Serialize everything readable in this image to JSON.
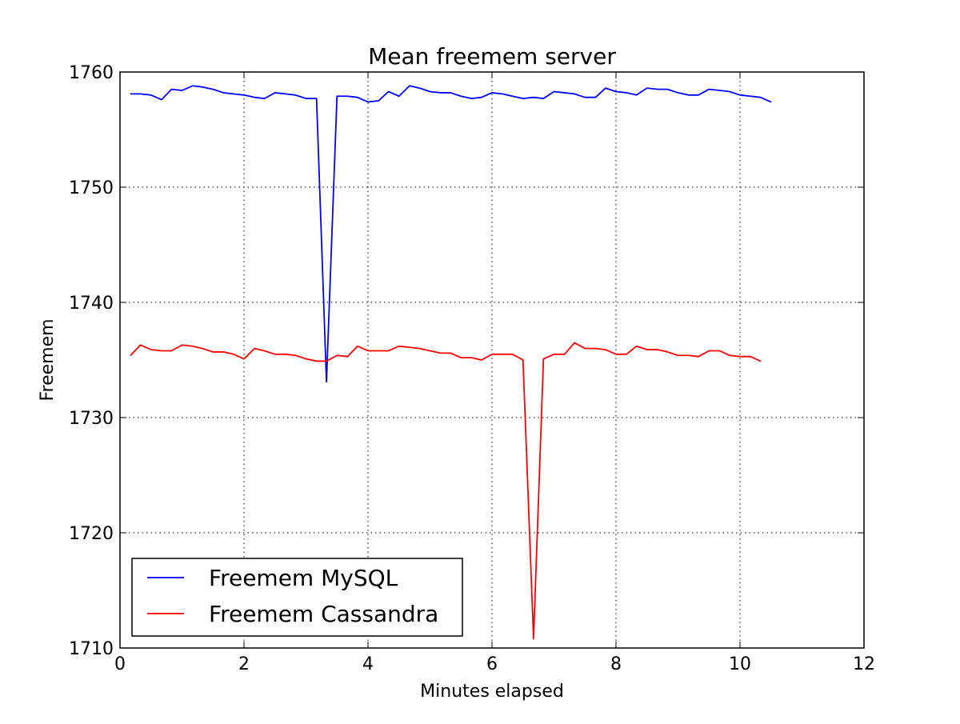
{
  "chart_data": {
    "type": "line",
    "title": "Mean freemem server",
    "xlabel": "Minutes elapsed",
    "ylabel": "Freemem",
    "xlim": [
      0,
      12
    ],
    "ylim": [
      1710,
      1760
    ],
    "xticks": [
      0,
      2,
      4,
      6,
      8,
      10,
      12
    ],
    "yticks": [
      1710,
      1720,
      1730,
      1740,
      1750,
      1760
    ],
    "grid": true,
    "legend_position": "lower-left",
    "series": [
      {
        "name": "Freemem MySQL",
        "color": "#0000ff",
        "x": [
          0.17,
          0.33,
          0.5,
          0.67,
          0.83,
          1.0,
          1.17,
          1.33,
          1.5,
          1.67,
          1.83,
          2.0,
          2.17,
          2.33,
          2.5,
          2.67,
          2.83,
          3.0,
          3.17,
          3.33,
          3.5,
          3.67,
          3.83,
          4.0,
          4.17,
          4.33,
          4.5,
          4.67,
          4.83,
          5.0,
          5.17,
          5.33,
          5.5,
          5.67,
          5.83,
          6.0,
          6.17,
          6.33,
          6.5,
          6.67,
          6.83,
          7.0,
          7.17,
          7.33,
          7.5,
          7.67,
          7.83,
          8.0,
          8.17,
          8.33,
          8.5,
          8.67,
          8.83,
          9.0,
          9.17,
          9.33,
          9.5,
          9.67,
          9.83,
          10.0,
          10.17,
          10.33,
          10.5
        ],
        "y": [
          1758.1,
          1758.1,
          1758.0,
          1757.6,
          1758.5,
          1758.4,
          1758.8,
          1758.7,
          1758.5,
          1758.2,
          1758.1,
          1758.0,
          1757.8,
          1757.7,
          1758.2,
          1758.1,
          1758.0,
          1757.7,
          1757.7,
          1733.1,
          1757.9,
          1757.9,
          1757.8,
          1757.4,
          1757.5,
          1758.3,
          1757.9,
          1758.8,
          1758.6,
          1758.3,
          1758.2,
          1758.2,
          1757.9,
          1757.7,
          1757.8,
          1758.2,
          1758.1,
          1757.9,
          1757.7,
          1757.8,
          1757.7,
          1758.3,
          1758.2,
          1758.1,
          1757.8,
          1757.8,
          1758.6,
          1758.3,
          1758.2,
          1758.0,
          1758.6,
          1758.5,
          1758.5,
          1758.2,
          1758.0,
          1758.0,
          1758.5,
          1758.4,
          1758.3,
          1758.0,
          1757.9,
          1757.8,
          1757.4
        ]
      },
      {
        "name": "Freemem Cassandra",
        "color": "#ff0000",
        "x": [
          0.17,
          0.33,
          0.5,
          0.67,
          0.83,
          1.0,
          1.17,
          1.33,
          1.5,
          1.67,
          1.83,
          2.0,
          2.17,
          2.33,
          2.5,
          2.67,
          2.83,
          3.0,
          3.17,
          3.33,
          3.5,
          3.67,
          3.83,
          4.0,
          4.17,
          4.33,
          4.5,
          4.67,
          4.83,
          5.0,
          5.17,
          5.33,
          5.5,
          5.67,
          5.83,
          6.0,
          6.17,
          6.33,
          6.5,
          6.67,
          6.83,
          7.0,
          7.17,
          7.33,
          7.5,
          7.67,
          7.83,
          8.0,
          8.17,
          8.33,
          8.5,
          8.67,
          8.83,
          9.0,
          9.17,
          9.33,
          9.5,
          9.67,
          9.83,
          10.0,
          10.17,
          10.33
        ],
        "y": [
          1735.4,
          1736.3,
          1735.9,
          1735.8,
          1735.8,
          1736.3,
          1736.2,
          1736.0,
          1735.7,
          1735.7,
          1735.5,
          1735.1,
          1736.0,
          1735.8,
          1735.5,
          1735.5,
          1735.4,
          1735.1,
          1734.9,
          1734.9,
          1735.4,
          1735.3,
          1736.2,
          1735.8,
          1735.8,
          1735.8,
          1736.2,
          1736.1,
          1736.0,
          1735.8,
          1735.6,
          1735.6,
          1735.2,
          1735.2,
          1735.0,
          1735.5,
          1735.5,
          1735.5,
          1735.0,
          1710.8,
          1735.1,
          1735.5,
          1735.5,
          1736.5,
          1736.0,
          1736.0,
          1735.9,
          1735.5,
          1735.5,
          1736.2,
          1735.9,
          1735.9,
          1735.7,
          1735.4,
          1735.4,
          1735.3,
          1735.8,
          1735.8,
          1735.4,
          1735.3,
          1735.3,
          1734.9
        ]
      }
    ]
  }
}
